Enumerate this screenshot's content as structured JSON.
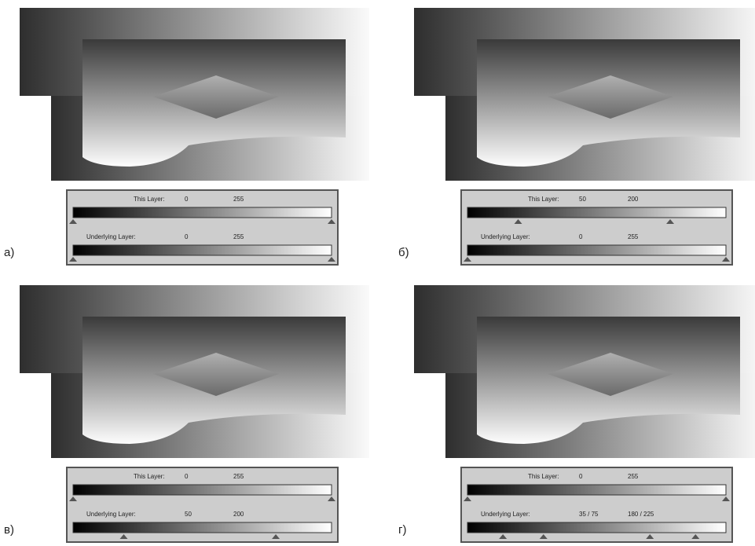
{
  "panels": [
    {
      "label": "а)",
      "this_layer": {
        "name": "This Layer:",
        "low": 0,
        "high": 255
      },
      "underlying_layer": {
        "name": "Underlying Layer:",
        "low": 0,
        "high": 255
      }
    },
    {
      "label": "б)",
      "this_layer": {
        "name": "This Layer:",
        "low": 50,
        "high": 200
      },
      "underlying_layer": {
        "name": "Underlying Layer:",
        "low": 0,
        "high": 255
      }
    },
    {
      "label": "в)",
      "this_layer": {
        "name": "This Layer:",
        "low": 0,
        "high": 255
      },
      "underlying_layer": {
        "name": "Underlying Layer:",
        "low": 50,
        "high": 200
      }
    },
    {
      "label": "г)",
      "this_layer": {
        "name": "This Layer:",
        "low": 0,
        "high": 255
      },
      "underlying_layer": {
        "name": "Underlying Layer:",
        "low": {
          "value": [
            35,
            75
          ],
          "label": "35 / 75"
        },
        "high": {
          "value": [
            180,
            225
          ],
          "label": "180 / 225"
        }
      }
    }
  ]
}
